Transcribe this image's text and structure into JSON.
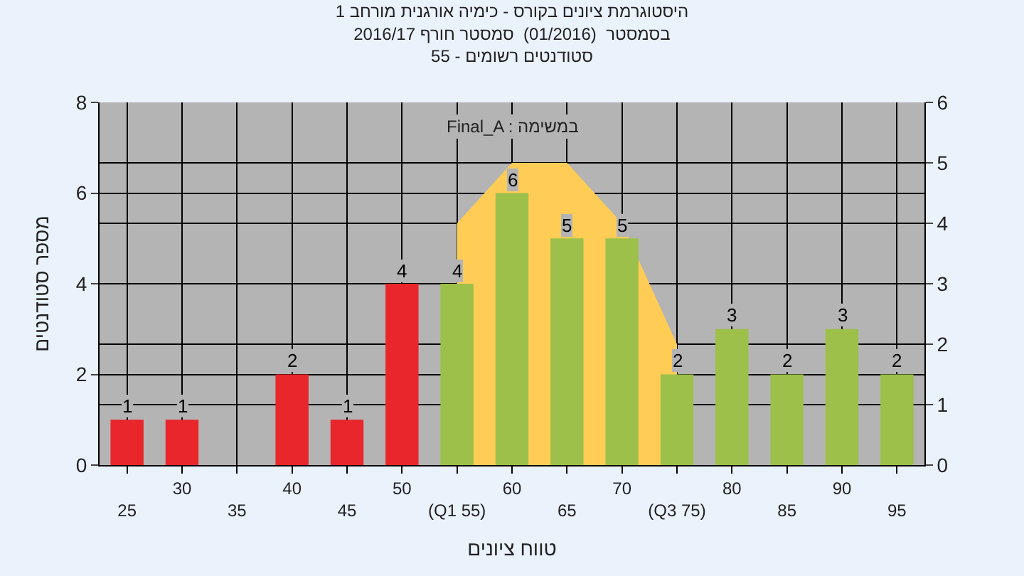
{
  "chart_data": {
    "type": "bar",
    "title": "היסטוגרמת ציונים בקורס - כימיה אורגנית מורחב 1",
    "subtitle": "בסמסטר  (01/2016)  סמסטר חורף 2016/17\nסטודנטים רשומים - 55",
    "xlabel": "טווח ציונים",
    "ylabel": "מספר סטודנטים",
    "annotations": [
      "Final_A : במשימה"
    ],
    "categories": [
      "25",
      "30",
      "35",
      "40",
      "45",
      "50",
      "(Q1 55)",
      "60",
      "65",
      "70",
      "(Q3 75)",
      "80",
      "85",
      "90",
      "95"
    ],
    "series": [
      {
        "type": "area",
        "axis": "y2",
        "color": "#ffcc55",
        "values": [
          null,
          null,
          null,
          null,
          null,
          null,
          4,
          5,
          5,
          4,
          2,
          null,
          null,
          null,
          null
        ]
      },
      {
        "values": [
          1,
          1,
          null,
          2,
          1,
          4,
          4,
          6,
          5,
          5,
          2,
          3,
          2,
          3,
          2
        ],
        "colors": [
          "#e8262b",
          "#e8262b",
          "#e8262b",
          "#e8262b",
          "#e8262b",
          "#e8262b",
          "#9cc04a",
          "#9cc04a",
          "#9cc04a",
          "#9cc04a",
          "#9cc04a",
          "#9cc04a",
          "#9cc04a",
          "#9cc04a",
          "#9cc04a"
        ],
        "value_labels": [
          "1",
          "1",
          null,
          "2",
          "1",
          "4",
          "4",
          "6",
          "5",
          "5",
          "2",
          "3",
          "2",
          "3",
          "2"
        ]
      }
    ],
    "ylim": [
      0,
      8
    ],
    "yticks": [
      0,
      2,
      4,
      6,
      8
    ],
    "y2lim": [
      0,
      6
    ],
    "y2ticks": [
      0,
      1,
      2,
      3,
      4,
      5,
      6
    ],
    "grid": true
  }
}
